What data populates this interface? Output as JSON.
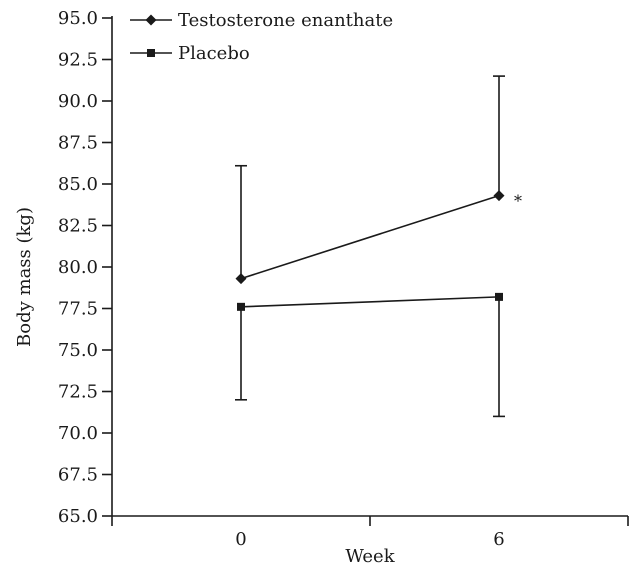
{
  "chart_data": {
    "type": "line",
    "title": "",
    "xlabel": "Week",
    "ylabel": "Body mass (kg)",
    "categories": [
      "0",
      "6"
    ],
    "ylim": [
      65.0,
      95.0
    ],
    "yticks": [
      "65.0",
      "67.5",
      "70.0",
      "72.5",
      "75.0",
      "77.5",
      "80.0",
      "82.5",
      "85.0",
      "87.5",
      "90.0",
      "92.5",
      "95.0"
    ],
    "grid": false,
    "legend_position": "top-left",
    "series": [
      {
        "name": "Testosterone enanthate",
        "marker": "diamond",
        "values": [
          79.3,
          84.3
        ],
        "error_upper": [
          86.1,
          91.5
        ],
        "error_lower": [
          null,
          null
        ],
        "annotations": [
          "",
          "*"
        ]
      },
      {
        "name": "Placebo",
        "marker": "square",
        "values": [
          77.6,
          78.2
        ],
        "error_upper": [
          null,
          null
        ],
        "error_lower": [
          72.0,
          71.0
        ]
      }
    ],
    "colors": {
      "ink": "#1a1a1a"
    }
  }
}
